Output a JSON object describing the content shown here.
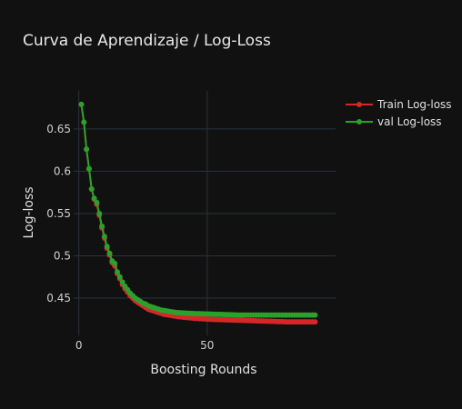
{
  "chart_data": {
    "type": "line",
    "title": "Curva de Aprendizaje / Log-Loss",
    "xlabel": "Boosting Rounds",
    "ylabel": "Log-loss",
    "xlim": [
      -2,
      100
    ],
    "ylim": [
      0.406,
      0.695
    ],
    "xticks": [
      0,
      50
    ],
    "xtick_labels": [
      "0",
      "50"
    ],
    "yticks": [
      0.45,
      0.5,
      0.55,
      0.6,
      0.65
    ],
    "ytick_labels": [
      "0.45",
      "0.5",
      "0.55",
      "0.6",
      "0.65"
    ],
    "grid": true,
    "legend": "top-right",
    "series": [
      {
        "name": "Train Log-loss",
        "color": "#d62728",
        "x_start": 1,
        "values": [
          0.679,
          0.658,
          0.626,
          0.603,
          0.579,
          0.567,
          0.561,
          0.548,
          0.533,
          0.521,
          0.509,
          0.501,
          0.492,
          0.488,
          0.479,
          0.473,
          0.466,
          0.461,
          0.457,
          0.453,
          0.45,
          0.447,
          0.445,
          0.443,
          0.441,
          0.439,
          0.437,
          0.436,
          0.435,
          0.434,
          0.433,
          0.432,
          0.431,
          0.4305,
          0.43,
          0.4295,
          0.429,
          0.4285,
          0.428,
          0.4277,
          0.4274,
          0.4271,
          0.4268,
          0.4265,
          0.4262,
          0.426,
          0.4258,
          0.4256,
          0.4254,
          0.4252,
          0.425,
          0.4249,
          0.4248,
          0.4247,
          0.4246,
          0.4245,
          0.4244,
          0.4243,
          0.4242,
          0.4241,
          0.424,
          0.4239,
          0.4238,
          0.4237,
          0.4236,
          0.4235,
          0.4234,
          0.4233,
          0.4232,
          0.4231,
          0.423,
          0.4229,
          0.4228,
          0.4227,
          0.4226,
          0.4225,
          0.4224,
          0.4223,
          0.4222,
          0.4221,
          0.422,
          0.422,
          0.422,
          0.422,
          0.422,
          0.422,
          0.422,
          0.422,
          0.422,
          0.422,
          0.422,
          0.422
        ]
      },
      {
        "name": "val Log-loss",
        "color": "#2ca02c",
        "x_start": 1,
        "values": [
          0.679,
          0.658,
          0.626,
          0.603,
          0.579,
          0.568,
          0.563,
          0.55,
          0.535,
          0.523,
          0.511,
          0.503,
          0.494,
          0.491,
          0.481,
          0.475,
          0.469,
          0.464,
          0.46,
          0.456,
          0.453,
          0.45,
          0.448,
          0.446,
          0.444,
          0.443,
          0.441,
          0.44,
          0.439,
          0.438,
          0.437,
          0.436,
          0.4355,
          0.435,
          0.4345,
          0.434,
          0.4335,
          0.433,
          0.4328,
          0.4326,
          0.4324,
          0.4322,
          0.432,
          0.4319,
          0.4318,
          0.4317,
          0.4316,
          0.4315,
          0.4314,
          0.4313,
          0.4312,
          0.4311,
          0.431,
          0.4309,
          0.4308,
          0.4307,
          0.4306,
          0.4305,
          0.4304,
          0.4303,
          0.4302,
          0.4301,
          0.43,
          0.43,
          0.43,
          0.43,
          0.43,
          0.43,
          0.43,
          0.43,
          0.43,
          0.43,
          0.43,
          0.43,
          0.43,
          0.43,
          0.43,
          0.43,
          0.43,
          0.43,
          0.43,
          0.43,
          0.43,
          0.43,
          0.43,
          0.43,
          0.43,
          0.43,
          0.43,
          0.43,
          0.43,
          0.43
        ]
      }
    ]
  }
}
